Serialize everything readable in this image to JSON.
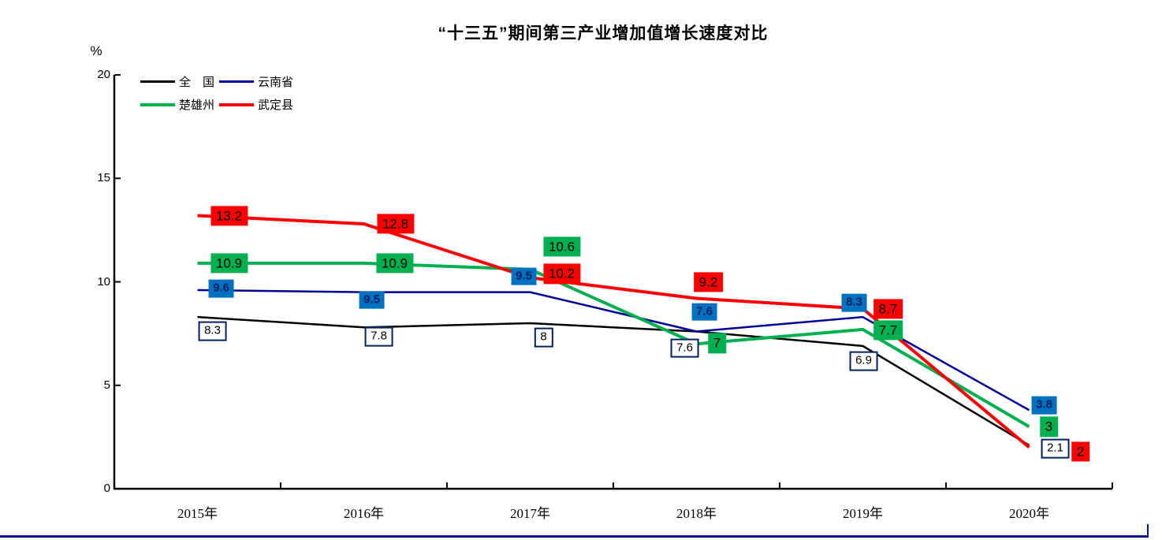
{
  "page": {
    "background": "#ffffff",
    "bottom_rule_color": "#001199"
  },
  "chart_data": {
    "type": "line",
    "title": "“十三五”期间第三产业增加值增长速度对比",
    "ylabel": "%",
    "xlabel": "",
    "categories": [
      "2015年",
      "2016年",
      "2017年",
      "2018年",
      "2019年",
      "2020年"
    ],
    "ylim": [
      0,
      20
    ],
    "yticks": [
      0,
      5,
      10,
      15,
      20
    ],
    "grid": false,
    "legend_position": "top-left-inside",
    "series": [
      {
        "name": "全　国",
        "color": "#000000",
        "values": [
          8.3,
          7.8,
          8,
          7.6,
          6.9,
          2.1
        ],
        "labels": [
          "8.3",
          "7.8",
          "8",
          "7.6",
          "6.9",
          "2.1"
        ],
        "label_style": "white-box-navy-border"
      },
      {
        "name": "云南省",
        "color": "#000099",
        "values": [
          9.6,
          9.5,
          9.5,
          7.6,
          8.3,
          3.8
        ],
        "labels": [
          "9.6",
          "9.5",
          "9.5",
          "7.6",
          "8.3",
          "3.8"
        ],
        "label_style": "blue-box"
      },
      {
        "name": "楚雄州",
        "color": "#00B050",
        "values": [
          10.9,
          10.9,
          10.6,
          7,
          7.7,
          3
        ],
        "labels": [
          "10.9",
          "10.9",
          "10.6",
          "7",
          "7.7",
          "3"
        ],
        "label_style": "green-box"
      },
      {
        "name": "武定县",
        "color": "#FF0000",
        "values": [
          13.2,
          12.8,
          10.2,
          9.2,
          8.7,
          2
        ],
        "labels": [
          "13.2",
          "12.8",
          "10.2",
          "9.2",
          "8.7",
          "2"
        ],
        "label_style": "red-box"
      }
    ],
    "label_box_colors": {
      "blue_fill": "#0070C0",
      "green_fill": "#00B050",
      "red_fill": "#FF0000",
      "navy_text": "#002060",
      "white_box_border": "#002060"
    }
  }
}
